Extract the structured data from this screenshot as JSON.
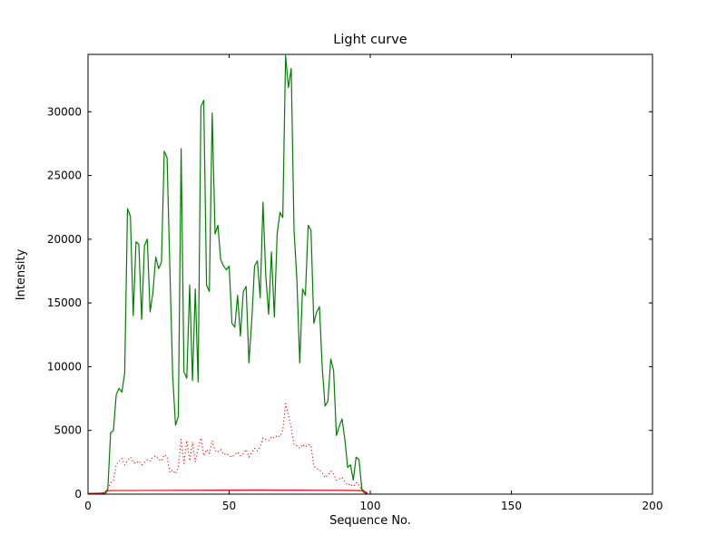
{
  "figure": {
    "title": "Light curve",
    "xlabel": "Sequence No.",
    "ylabel": "Intensity"
  },
  "chart_data": {
    "type": "line",
    "title": "Light curve",
    "xlabel": "Sequence No.",
    "ylabel": "Intensity",
    "xlim": [
      0,
      200
    ],
    "ylim": [
      0,
      34500
    ],
    "xticks": [
      0,
      50,
      100,
      150,
      200
    ],
    "yticks": [
      0,
      5000,
      10000,
      15000,
      20000,
      25000,
      30000
    ],
    "grid": false,
    "legend_position": "none",
    "frame_color": "#000000",
    "series": [
      {
        "name": "main-intensity-green",
        "color": "#008000",
        "style": "solid",
        "width": 1.2,
        "points": [
          [
            0,
            60
          ],
          [
            5,
            80
          ],
          [
            6,
            150
          ],
          [
            7,
            400
          ],
          [
            8,
            4800
          ],
          [
            9,
            5000
          ],
          [
            10,
            7800
          ],
          [
            11,
            8300
          ],
          [
            12,
            8000
          ],
          [
            13,
            9500
          ],
          [
            14,
            22400
          ],
          [
            15,
            21800
          ],
          [
            16,
            14000
          ],
          [
            17,
            19800
          ],
          [
            18,
            19600
          ],
          [
            19,
            13700
          ],
          [
            20,
            19500
          ],
          [
            21,
            20000
          ],
          [
            22,
            14300
          ],
          [
            23,
            15800
          ],
          [
            24,
            18600
          ],
          [
            25,
            17700
          ],
          [
            26,
            18200
          ],
          [
            27,
            26900
          ],
          [
            28,
            26400
          ],
          [
            29,
            17600
          ],
          [
            30,
            9300
          ],
          [
            31,
            5400
          ],
          [
            32,
            6100
          ],
          [
            33,
            27100
          ],
          [
            34,
            9600
          ],
          [
            35,
            9100
          ],
          [
            36,
            16400
          ],
          [
            37,
            8900
          ],
          [
            38,
            16100
          ],
          [
            39,
            8800
          ],
          [
            40,
            30400
          ],
          [
            41,
            30900
          ],
          [
            42,
            16400
          ],
          [
            43,
            15900
          ],
          [
            44,
            29900
          ],
          [
            45,
            20400
          ],
          [
            46,
            21100
          ],
          [
            47,
            18400
          ],
          [
            48,
            17900
          ],
          [
            49,
            17600
          ],
          [
            50,
            17900
          ],
          [
            51,
            13400
          ],
          [
            52,
            13100
          ],
          [
            53,
            15600
          ],
          [
            54,
            12400
          ],
          [
            55,
            15900
          ],
          [
            56,
            16300
          ],
          [
            57,
            10300
          ],
          [
            58,
            13600
          ],
          [
            59,
            17900
          ],
          [
            60,
            18300
          ],
          [
            61,
            15400
          ],
          [
            62,
            22900
          ],
          [
            63,
            17100
          ],
          [
            64,
            14100
          ],
          [
            65,
            19000
          ],
          [
            66,
            13900
          ],
          [
            67,
            20400
          ],
          [
            68,
            22100
          ],
          [
            69,
            21700
          ],
          [
            70,
            34400
          ],
          [
            71,
            31900
          ],
          [
            72,
            33400
          ],
          [
            73,
            20700
          ],
          [
            74,
            16900
          ],
          [
            75,
            10300
          ],
          [
            76,
            16100
          ],
          [
            77,
            15600
          ],
          [
            78,
            21100
          ],
          [
            79,
            20700
          ],
          [
            80,
            13400
          ],
          [
            81,
            14300
          ],
          [
            82,
            14700
          ],
          [
            83,
            9900
          ],
          [
            84,
            6900
          ],
          [
            85,
            7300
          ],
          [
            86,
            10600
          ],
          [
            87,
            9700
          ],
          [
            88,
            4600
          ],
          [
            89,
            5300
          ],
          [
            90,
            5900
          ],
          [
            91,
            4300
          ],
          [
            92,
            2100
          ],
          [
            93,
            2300
          ],
          [
            94,
            1100
          ],
          [
            95,
            2900
          ],
          [
            96,
            2700
          ],
          [
            97,
            400
          ],
          [
            98,
            200
          ],
          [
            99,
            100
          ]
        ]
      },
      {
        "name": "secondary-intensity-red-dotted",
        "color": "#ff0000",
        "style": "dotted",
        "width": 1.1,
        "dash": "1.2,2.6",
        "points": [
          [
            7,
            400
          ],
          [
            8,
            900
          ],
          [
            9,
            1100
          ],
          [
            10,
            2300
          ],
          [
            11,
            2600
          ],
          [
            12,
            2800
          ],
          [
            13,
            2300
          ],
          [
            14,
            2600
          ],
          [
            15,
            2900
          ],
          [
            16,
            2500
          ],
          [
            17,
            2400
          ],
          [
            18,
            2600
          ],
          [
            19,
            2300
          ],
          [
            20,
            2500
          ],
          [
            21,
            2700
          ],
          [
            22,
            2600
          ],
          [
            23,
            2900
          ],
          [
            24,
            3000
          ],
          [
            25,
            2700
          ],
          [
            26,
            2600
          ],
          [
            27,
            3100
          ],
          [
            28,
            2900
          ],
          [
            29,
            1700
          ],
          [
            30,
            1900
          ],
          [
            31,
            1600
          ],
          [
            32,
            2100
          ],
          [
            33,
            4300
          ],
          [
            34,
            2400
          ],
          [
            35,
            4200
          ],
          [
            36,
            2600
          ],
          [
            37,
            4100
          ],
          [
            38,
            2500
          ],
          [
            39,
            3600
          ],
          [
            40,
            4400
          ],
          [
            41,
            3000
          ],
          [
            42,
            3500
          ],
          [
            43,
            3200
          ],
          [
            44,
            4200
          ],
          [
            45,
            3400
          ],
          [
            46,
            3300
          ],
          [
            47,
            3500
          ],
          [
            48,
            3100
          ],
          [
            49,
            3200
          ],
          [
            50,
            3000
          ],
          [
            51,
            2900
          ],
          [
            52,
            3100
          ],
          [
            53,
            3300
          ],
          [
            54,
            3000
          ],
          [
            55,
            3200
          ],
          [
            56,
            3500
          ],
          [
            57,
            2900
          ],
          [
            58,
            3300
          ],
          [
            59,
            3600
          ],
          [
            60,
            3400
          ],
          [
            61,
            3700
          ],
          [
            62,
            4400
          ],
          [
            63,
            4300
          ],
          [
            64,
            4200
          ],
          [
            65,
            4500
          ],
          [
            66,
            4400
          ],
          [
            67,
            4600
          ],
          [
            68,
            4500
          ],
          [
            69,
            5000
          ],
          [
            70,
            7100
          ],
          [
            71,
            6200
          ],
          [
            72,
            5200
          ],
          [
            73,
            3900
          ],
          [
            74,
            3800
          ],
          [
            75,
            3600
          ],
          [
            76,
            3900
          ],
          [
            77,
            3700
          ],
          [
            78,
            3900
          ],
          [
            79,
            3800
          ],
          [
            80,
            2200
          ],
          [
            81,
            2000
          ],
          [
            82,
            1900
          ],
          [
            83,
            1700
          ],
          [
            84,
            1300
          ],
          [
            85,
            1500
          ],
          [
            86,
            1800
          ],
          [
            87,
            1600
          ],
          [
            88,
            1100
          ],
          [
            89,
            1200
          ],
          [
            90,
            1300
          ],
          [
            91,
            1000
          ],
          [
            92,
            700
          ],
          [
            93,
            800
          ],
          [
            94,
            600
          ],
          [
            95,
            900
          ],
          [
            96,
            700
          ],
          [
            97,
            300
          ],
          [
            98,
            200
          ],
          [
            99,
            100
          ]
        ]
      },
      {
        "name": "baseline-red-solid",
        "color": "#ff0000",
        "style": "solid",
        "width": 1.2,
        "points": [
          [
            0,
            30
          ],
          [
            6,
            50
          ],
          [
            7,
            280
          ],
          [
            30,
            300
          ],
          [
            60,
            320
          ],
          [
            90,
            300
          ],
          [
            97,
            280
          ],
          [
            98,
            100
          ],
          [
            99,
            30
          ]
        ]
      }
    ]
  }
}
